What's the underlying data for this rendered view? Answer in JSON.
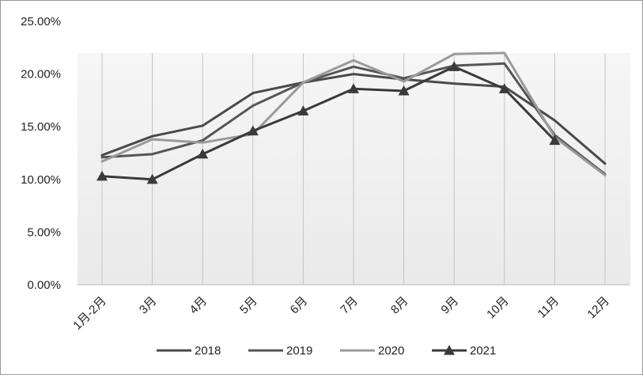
{
  "chart_data": {
    "type": "line",
    "categories": [
      "1月-2月",
      "3月",
      "4月",
      "5月",
      "6月",
      "7月",
      "8月",
      "9月",
      "10月",
      "11月",
      "12月"
    ],
    "ylim": [
      0,
      25
    ],
    "yticks": [
      "0.00%",
      "5.00%",
      "10.00%",
      "15.00%",
      "20.00%",
      "25.00%"
    ],
    "ytick_values": [
      0,
      5,
      10,
      15,
      20,
      25
    ],
    "grid": "vertical lines at categories",
    "legend_position": "bottom",
    "series": [
      {
        "name": "2018",
        "color": "#4a4a4a",
        "marker": "none",
        "values": [
          12.3,
          14.1,
          15.1,
          18.2,
          19.2,
          20.0,
          19.5,
          19.1,
          18.8,
          15.6,
          11.5
        ]
      },
      {
        "name": "2019",
        "color": "#555555",
        "marker": "none",
        "values": [
          12.1,
          12.4,
          13.7,
          17.0,
          19.2,
          20.7,
          19.6,
          20.8,
          21.0,
          14.2,
          10.5
        ]
      },
      {
        "name": "2020",
        "color": "#9a9a9a",
        "marker": "none",
        "values": [
          11.7,
          13.8,
          13.5,
          14.3,
          19.2,
          21.3,
          19.3,
          21.9,
          22.0,
          14.0,
          10.4
        ]
      },
      {
        "name": "2021",
        "color": "#3a3a3a",
        "marker": "triangle",
        "values": [
          10.3,
          10.0,
          12.4,
          14.6,
          16.5,
          18.6,
          18.4,
          20.7,
          18.6,
          13.7,
          null
        ]
      }
    ]
  }
}
